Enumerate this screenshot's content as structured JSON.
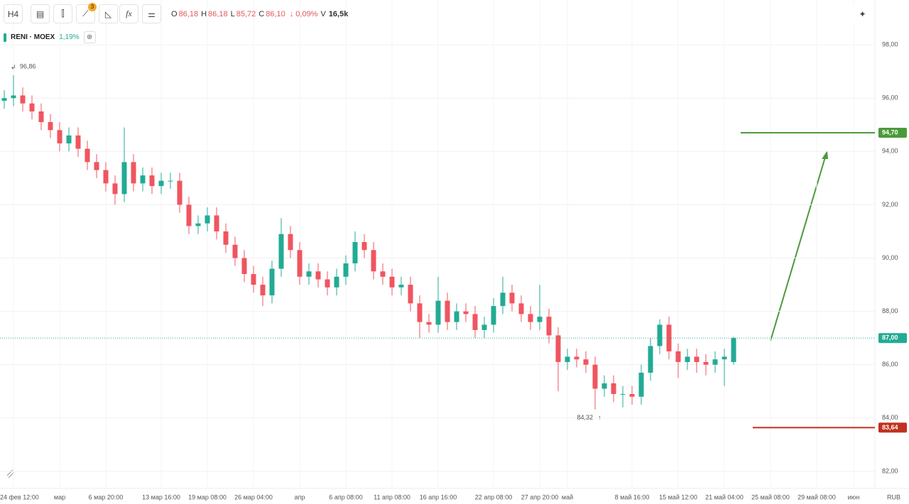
{
  "header": {
    "interval": "H4",
    "badge": "3",
    "ohlc": [
      {
        "key": "O",
        "value": "86,18"
      },
      {
        "key": "H",
        "value": "86,18"
      },
      {
        "key": "L",
        "value": "85,72"
      },
      {
        "key": "C",
        "value": "86,10"
      }
    ],
    "change": "↓ 0,09%",
    "volume_key": "V",
    "volume": "16,5k"
  },
  "legend": {
    "symbol": "RENI · MOEX",
    "change": "1,19%"
  },
  "chart_data": {
    "type": "candlestick",
    "up_color": "#22ab94",
    "down_color": "#f0555f",
    "grid": true,
    "categories": [
      null,
      "24 фев 12:00",
      null,
      null,
      null,
      null,
      "мар",
      null,
      null,
      null,
      null,
      "6 мар 20:00",
      null,
      null,
      null,
      null,
      null,
      "13 мар 16:00",
      null,
      null,
      null,
      null,
      "19 мар 08:00",
      null,
      null,
      null,
      null,
      "26 мар 04:00",
      null,
      null,
      null,
      null,
      "апр",
      null,
      null,
      null,
      null,
      "6 апр 08:00",
      null,
      null,
      null,
      null,
      "11 апр 08:00",
      null,
      null,
      null,
      null,
      "16 апр 16:00",
      null,
      null,
      null,
      null,
      null,
      "22 апр 08:00",
      null,
      null,
      null,
      null,
      "27 апр 20:00",
      null,
      null,
      "май",
      null,
      null,
      null,
      null,
      null,
      null,
      "8 май 16:00",
      null,
      null,
      null,
      null,
      "15 май 12:00",
      null,
      null,
      null,
      null,
      "21 май 04:00",
      null,
      null,
      null,
      null,
      "25 май 08:00",
      null,
      null,
      null,
      null,
      "29 май 08:00",
      null,
      null,
      null,
      "июн"
    ],
    "open": [
      95.9,
      96.0,
      96.1,
      95.8,
      95.5,
      95.1,
      94.8,
      94.3,
      94.6,
      94.1,
      93.6,
      93.3,
      92.8,
      92.4,
      93.6,
      92.8,
      93.1,
      92.7,
      92.9,
      92.9,
      92.0,
      91.2,
      91.3,
      91.6,
      91.0,
      90.5,
      90.0,
      89.4,
      89.0,
      88.6,
      89.6,
      90.9,
      90.3,
      89.3,
      89.5,
      89.2,
      88.9,
      89.3,
      89.8,
      90.6,
      90.3,
      89.5,
      89.3,
      88.9,
      89.0,
      88.3,
      87.6,
      87.5,
      88.4,
      87.6,
      88.0,
      87.9,
      87.3,
      87.5,
      88.2,
      88.7,
      88.3,
      87.9,
      87.6,
      87.8,
      87.1,
      86.1,
      86.3,
      86.2,
      86.0,
      85.1,
      85.3,
      84.9,
      84.9,
      84.8,
      85.7,
      86.7,
      87.5,
      86.5,
      86.1,
      86.3,
      86.1,
      86.0,
      86.2,
      86.1,
      null,
      null,
      null,
      null,
      null,
      null,
      null,
      null,
      null,
      null,
      null,
      null,
      null
    ],
    "high": [
      96.3,
      96.86,
      96.4,
      96.1,
      95.8,
      95.4,
      95.1,
      94.9,
      94.9,
      94.4,
      93.9,
      93.6,
      93.1,
      94.9,
      93.9,
      93.4,
      93.4,
      93.2,
      93.2,
      93.2,
      92.3,
      91.6,
      91.9,
      91.9,
      91.3,
      90.8,
      90.3,
      89.7,
      89.3,
      89.9,
      91.5,
      91.2,
      90.6,
      89.8,
      89.8,
      89.5,
      89.6,
      90.1,
      91.0,
      90.9,
      90.6,
      89.8,
      89.6,
      89.3,
      89.3,
      88.6,
      87.9,
      89.3,
      88.7,
      88.3,
      88.3,
      88.2,
      87.8,
      88.5,
      89.3,
      89.0,
      88.6,
      88.2,
      89.0,
      88.1,
      87.4,
      86.6,
      86.6,
      86.5,
      86.3,
      85.6,
      85.6,
      85.2,
      85.2,
      86.0,
      87.0,
      87.7,
      87.8,
      86.8,
      86.6,
      86.6,
      86.4,
      86.5,
      86.6,
      87.05,
      null,
      null,
      null,
      null,
      null,
      null,
      null,
      null,
      null,
      null,
      null,
      null,
      null
    ],
    "low": [
      95.6,
      95.7,
      95.5,
      95.2,
      94.8,
      94.5,
      94.0,
      94.0,
      93.8,
      93.3,
      93.0,
      92.5,
      92.0,
      92.1,
      92.5,
      92.5,
      92.4,
      92.4,
      92.6,
      91.7,
      90.9,
      90.9,
      91.0,
      90.7,
      90.2,
      89.7,
      89.1,
      88.7,
      88.2,
      88.3,
      89.3,
      90.0,
      89.0,
      89.0,
      88.9,
      88.6,
      88.6,
      89.0,
      89.5,
      90.0,
      89.2,
      89.0,
      88.6,
      88.6,
      88.0,
      87.0,
      87.2,
      87.2,
      87.3,
      87.3,
      87.6,
      87.0,
      87.0,
      87.2,
      87.9,
      88.0,
      87.6,
      87.3,
      87.3,
      86.8,
      85.0,
      85.8,
      85.9,
      85.7,
      84.32,
      84.8,
      84.6,
      84.4,
      84.5,
      84.5,
      85.4,
      86.4,
      86.2,
      85.5,
      85.8,
      85.7,
      85.6,
      85.7,
      85.2,
      86.0,
      null,
      null,
      null,
      null,
      null,
      null,
      null,
      null,
      null,
      null,
      null,
      null,
      null
    ],
    "close": [
      96.0,
      96.1,
      95.8,
      95.5,
      95.1,
      94.8,
      94.3,
      94.6,
      94.1,
      93.6,
      93.3,
      92.8,
      92.4,
      93.6,
      92.8,
      93.1,
      92.7,
      92.9,
      92.9,
      92.0,
      91.2,
      91.3,
      91.6,
      91.0,
      90.5,
      90.0,
      89.4,
      89.0,
      88.6,
      89.6,
      90.9,
      90.3,
      89.3,
      89.5,
      89.2,
      88.9,
      89.3,
      89.8,
      90.6,
      90.3,
      89.5,
      89.3,
      88.9,
      89.0,
      88.3,
      87.6,
      87.5,
      88.4,
      87.6,
      88.0,
      87.9,
      87.3,
      87.5,
      88.2,
      88.7,
      88.3,
      87.9,
      87.6,
      87.8,
      87.1,
      86.1,
      86.3,
      86.2,
      86.0,
      85.1,
      85.3,
      84.9,
      84.9,
      84.8,
      85.7,
      86.7,
      87.5,
      86.5,
      86.1,
      86.3,
      86.1,
      86.0,
      86.2,
      86.3,
      87.0,
      null,
      null,
      null,
      null,
      null,
      null,
      null,
      null,
      null,
      null,
      null,
      null,
      null
    ],
    "ylim": [
      81.36,
      99.68
    ],
    "yticks": [
      {
        "value": 82,
        "label": "82,00"
      },
      {
        "value": 84,
        "label": "84,00"
      },
      {
        "value": 86,
        "label": "86,00"
      },
      {
        "value": 88,
        "label": "88,00"
      },
      {
        "value": 90,
        "label": "90,00"
      },
      {
        "value": 92,
        "label": "92,00"
      },
      {
        "value": 94,
        "label": "94,00"
      },
      {
        "value": 96,
        "label": "96,00"
      },
      {
        "value": 98,
        "label": "98,00"
      }
    ],
    "currency": "RUB",
    "max_label": {
      "value": 96.86,
      "label": "96,86"
    },
    "min_label": {
      "value": 84.32,
      "label": "84,32"
    },
    "price_line": {
      "value": 87,
      "label": "87,00",
      "color": "#22ab94"
    },
    "levels": [
      {
        "value": 94.7,
        "label": "94,70",
        "color": "#4a9a3a"
      },
      {
        "value": 83.64,
        "label": "83,64",
        "color": "#c0301f"
      }
    ]
  }
}
